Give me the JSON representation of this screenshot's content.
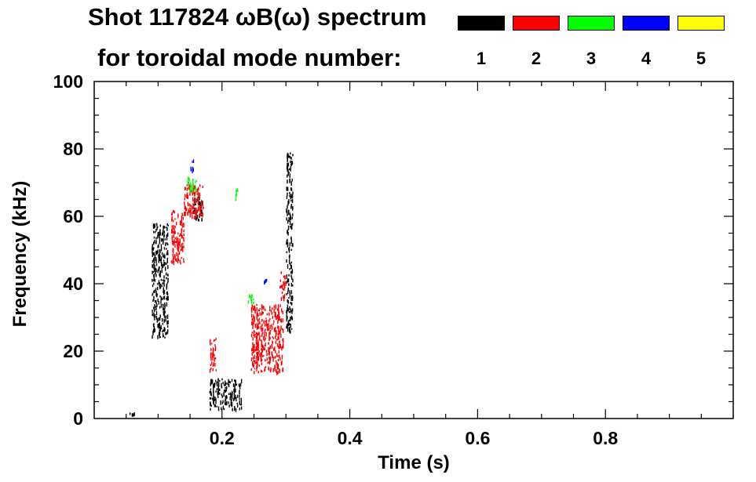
{
  "chart_data": {
    "type": "scatter",
    "title": "Shot 117824 ωB(ω) spectrum",
    "subtitle": "for toroidal mode number:",
    "xlabel": "Time (s)",
    "ylabel": "Frequency (kHz)",
    "xlim": [
      0.0,
      1.0
    ],
    "ylim": [
      0,
      100
    ],
    "x_ticks": [
      0.2,
      0.4,
      0.6,
      0.8
    ],
    "x_tick_labels": [
      "0.2",
      "0.4",
      "0.6",
      "0.8"
    ],
    "y_ticks": [
      0,
      20,
      40,
      60,
      80,
      100
    ],
    "y_tick_labels": [
      "0",
      "20",
      "40",
      "60",
      "80",
      "100"
    ],
    "grid": false,
    "legend_position": "top-right",
    "legend": [
      {
        "label": "1",
        "color": "#000000"
      },
      {
        "label": "2",
        "color": "#ff0000"
      },
      {
        "label": "3",
        "color": "#00ff00"
      },
      {
        "label": "4",
        "color": "#0000ff"
      },
      {
        "label": "5",
        "color": "#ffff00"
      }
    ],
    "series": [
      {
        "mode": "1",
        "color": "#000000",
        "regions": [
          {
            "t": [
              0.09,
              0.115
            ],
            "f": [
              24,
              58
            ]
          },
          {
            "t": [
              0.155,
              0.17
            ],
            "f": [
              59,
              66
            ]
          },
          {
            "t": [
              0.18,
              0.23
            ],
            "f": [
              3,
              12
            ]
          },
          {
            "t": [
              0.3,
              0.31
            ],
            "f": [
              26,
              79
            ]
          },
          {
            "t": [
              0.055,
              0.062
            ],
            "f": [
              1,
              2
            ]
          }
        ]
      },
      {
        "mode": "2",
        "color": "#ff0000",
        "regions": [
          {
            "t": [
              0.12,
              0.14
            ],
            "f": [
              46,
              62
            ]
          },
          {
            "t": [
              0.14,
              0.17
            ],
            "f": [
              60,
              70
            ]
          },
          {
            "t": [
              0.18,
              0.19
            ],
            "f": [
              14,
              24
            ]
          },
          {
            "t": [
              0.245,
              0.295
            ],
            "f": [
              14,
              34
            ]
          },
          {
            "t": [
              0.29,
              0.3
            ],
            "f": [
              36,
              44
            ]
          }
        ]
      },
      {
        "mode": "3",
        "color": "#00ff00",
        "regions": [
          {
            "t": [
              0.145,
              0.16
            ],
            "f": [
              68,
              72
            ]
          },
          {
            "t": [
              0.22,
              0.225
            ],
            "f": [
              65,
              69
            ]
          },
          {
            "t": [
              0.24,
              0.25
            ],
            "f": [
              34,
              37
            ]
          }
        ]
      },
      {
        "mode": "4",
        "color": "#0000ff",
        "regions": [
          {
            "t": [
              0.15,
              0.155
            ],
            "f": [
              74,
              77
            ]
          },
          {
            "t": [
              0.265,
              0.27
            ],
            "f": [
              40,
              42
            ]
          }
        ]
      },
      {
        "mode": "5",
        "color": "#ffff00",
        "regions": []
      }
    ]
  }
}
